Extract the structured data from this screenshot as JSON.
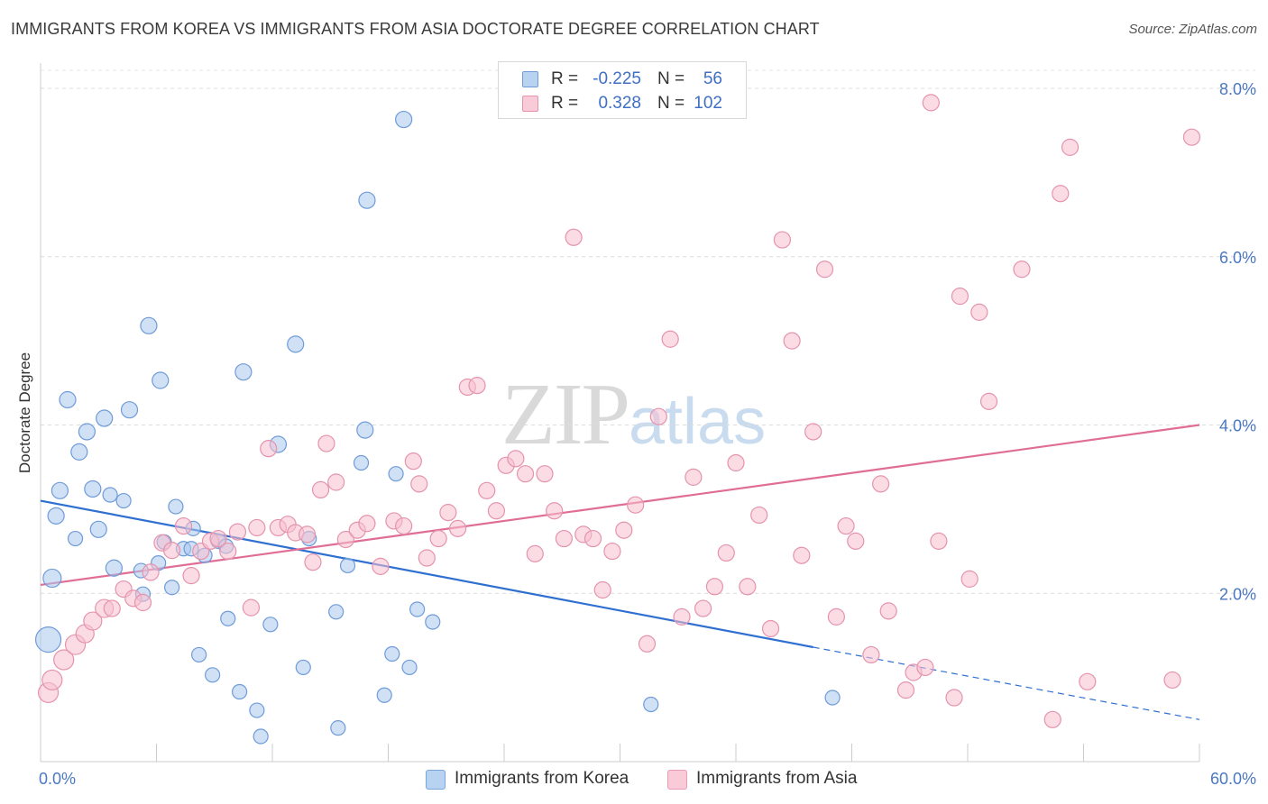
{
  "title": "IMMIGRANTS FROM KOREA VS IMMIGRANTS FROM ASIA DOCTORATE DEGREE CORRELATION CHART",
  "source": "Source: ZipAtlas.com",
  "watermark": {
    "part1": "ZIP",
    "part2": "atlas"
  },
  "legend": {
    "r_label": "R =",
    "n_label": "N =",
    "rows": [
      {
        "r": "-0.225",
        "n": "56",
        "color": "#a9c8ef",
        "border": "#5b8fd6"
      },
      {
        "r": "0.328",
        "n": "102",
        "color": "#f7bfd0",
        "border": "#e487a6"
      }
    ]
  },
  "chart_data": {
    "type": "scatter",
    "title": "IMMIGRANTS FROM KOREA VS IMMIGRANTS FROM ASIA DOCTORATE DEGREE CORRELATION CHART",
    "xlabel": "",
    "ylabel": "Doctorate Degree",
    "xlim": [
      0,
      60
    ],
    "ylim": [
      0,
      8.3
    ],
    "x_tick_labels": [
      "0.0%",
      "60.0%"
    ],
    "y_tick_labels": [
      "2.0%",
      "4.0%",
      "6.0%",
      "8.0%"
    ],
    "y_ticks": [
      2,
      4,
      6,
      8
    ],
    "grid": "horizontal dashed",
    "legend_position": "top-center",
    "series": [
      {
        "name": "Immigrants from Korea",
        "color": "#a9c8ef",
        "stroke": "#6f9bd8",
        "trend": {
          "x0": 0,
          "y0": 3.1,
          "x1": 40,
          "y1": 1.36,
          "color": "#2f6fd1",
          "dashed_to_x": 60,
          "dashed_to_y": 0.5
        },
        "points": [
          [
            0.4,
            1.45,
            14
          ],
          [
            0.6,
            2.18,
            10
          ],
          [
            0.8,
            2.92,
            9
          ],
          [
            1.0,
            3.22,
            9
          ],
          [
            1.4,
            4.3,
            9
          ],
          [
            1.8,
            2.65,
            8
          ],
          [
            2.0,
            3.68,
            9
          ],
          [
            2.4,
            3.92,
            9
          ],
          [
            2.7,
            3.24,
            9
          ],
          [
            3.0,
            2.76,
            9
          ],
          [
            3.3,
            4.08,
            9
          ],
          [
            3.6,
            3.17,
            8
          ],
          [
            3.8,
            2.3,
            9
          ],
          [
            4.3,
            3.1,
            8
          ],
          [
            4.6,
            4.18,
            9
          ],
          [
            5.2,
            2.27,
            8
          ],
          [
            5.3,
            1.99,
            8
          ],
          [
            5.6,
            5.18,
            9
          ],
          [
            6.1,
            2.36,
            8
          ],
          [
            6.2,
            4.53,
            9
          ],
          [
            6.4,
            2.61,
            8
          ],
          [
            6.8,
            2.07,
            8
          ],
          [
            7.0,
            3.03,
            8
          ],
          [
            7.4,
            2.53,
            8
          ],
          [
            7.8,
            2.53,
            8
          ],
          [
            7.9,
            2.77,
            8
          ],
          [
            8.2,
            1.27,
            8
          ],
          [
            8.5,
            2.45,
            8
          ],
          [
            8.9,
            1.03,
            8
          ],
          [
            9.2,
            2.62,
            8
          ],
          [
            9.6,
            2.56,
            8
          ],
          [
            9.7,
            1.7,
            8
          ],
          [
            10.3,
            0.83,
            8
          ],
          [
            10.5,
            4.63,
            9
          ],
          [
            11.2,
            0.61,
            8
          ],
          [
            11.4,
            0.3,
            8
          ],
          [
            11.9,
            1.63,
            8
          ],
          [
            12.3,
            3.77,
            9
          ],
          [
            13.2,
            4.96,
            9
          ],
          [
            13.6,
            1.12,
            8
          ],
          [
            13.9,
            2.65,
            8
          ],
          [
            15.3,
            1.78,
            8
          ],
          [
            15.4,
            0.4,
            8
          ],
          [
            15.9,
            2.33,
            8
          ],
          [
            16.6,
            3.55,
            8
          ],
          [
            16.8,
            3.94,
            9
          ],
          [
            16.9,
            6.67,
            9
          ],
          [
            17.8,
            0.79,
            8
          ],
          [
            18.2,
            1.28,
            8
          ],
          [
            18.4,
            3.42,
            8
          ],
          [
            18.8,
            7.63,
            9
          ],
          [
            19.1,
            1.12,
            8
          ],
          [
            19.5,
            1.81,
            8
          ],
          [
            20.3,
            1.66,
            8
          ],
          [
            31.6,
            0.68,
            8
          ],
          [
            41.0,
            0.76,
            8
          ]
        ]
      },
      {
        "name": "Immigrants from Asia",
        "color": "#f7bfd0",
        "stroke": "#e593ad",
        "trend": {
          "x0": 0,
          "y0": 2.1,
          "x1": 60,
          "y1": 4.0,
          "color": "#e06d96"
        },
        "points": [
          [
            0.4,
            0.82,
            11
          ],
          [
            0.6,
            0.97,
            11
          ],
          [
            1.2,
            1.21,
            11
          ],
          [
            1.8,
            1.39,
            11
          ],
          [
            2.3,
            1.52,
            10
          ],
          [
            2.7,
            1.67,
            10
          ],
          [
            3.3,
            1.82,
            10
          ],
          [
            3.7,
            1.82,
            9
          ],
          [
            4.3,
            2.05,
            9
          ],
          [
            4.8,
            1.94,
            9
          ],
          [
            5.3,
            1.89,
            9
          ],
          [
            5.7,
            2.25,
            9
          ],
          [
            6.3,
            2.6,
            9
          ],
          [
            6.8,
            2.51,
            9
          ],
          [
            7.4,
            2.8,
            9
          ],
          [
            7.8,
            2.21,
            9
          ],
          [
            8.3,
            2.5,
            9
          ],
          [
            8.8,
            2.62,
            9
          ],
          [
            9.2,
            2.65,
            9
          ],
          [
            9.7,
            2.5,
            9
          ],
          [
            10.2,
            2.73,
            9
          ],
          [
            10.9,
            1.83,
            9
          ],
          [
            11.2,
            2.78,
            9
          ],
          [
            11.8,
            3.72,
            9
          ],
          [
            12.3,
            2.78,
            9
          ],
          [
            12.8,
            2.82,
            9
          ],
          [
            13.2,
            2.72,
            9
          ],
          [
            13.8,
            2.7,
            9
          ],
          [
            14.1,
            2.37,
            9
          ],
          [
            14.5,
            3.23,
            9
          ],
          [
            14.8,
            3.78,
            9
          ],
          [
            15.3,
            3.32,
            9
          ],
          [
            15.8,
            2.64,
            9
          ],
          [
            16.4,
            2.75,
            9
          ],
          [
            16.9,
            2.83,
            9
          ],
          [
            17.6,
            2.32,
            9
          ],
          [
            18.3,
            2.86,
            9
          ],
          [
            18.8,
            2.8,
            9
          ],
          [
            19.3,
            3.57,
            9
          ],
          [
            19.6,
            3.3,
            9
          ],
          [
            20.0,
            2.42,
            9
          ],
          [
            20.6,
            2.65,
            9
          ],
          [
            21.1,
            2.96,
            9
          ],
          [
            21.6,
            2.77,
            9
          ],
          [
            22.1,
            4.45,
            9
          ],
          [
            22.6,
            4.47,
            9
          ],
          [
            23.1,
            3.22,
            9
          ],
          [
            23.6,
            2.98,
            9
          ],
          [
            24.1,
            3.52,
            9
          ],
          [
            24.6,
            3.6,
            9
          ],
          [
            25.1,
            3.42,
            9
          ],
          [
            25.6,
            2.47,
            9
          ],
          [
            26.1,
            3.42,
            9
          ],
          [
            26.6,
            2.98,
            9
          ],
          [
            27.1,
            2.65,
            9
          ],
          [
            27.6,
            6.23,
            9
          ],
          [
            28.1,
            2.7,
            9
          ],
          [
            28.6,
            2.65,
            9
          ],
          [
            29.1,
            2.04,
            9
          ],
          [
            29.6,
            2.5,
            9
          ],
          [
            30.2,
            2.75,
            9
          ],
          [
            30.8,
            3.05,
            9
          ],
          [
            31.4,
            1.4,
            9
          ],
          [
            32.0,
            4.1,
            9
          ],
          [
            32.6,
            5.02,
            9
          ],
          [
            33.2,
            1.72,
            9
          ],
          [
            33.8,
            3.38,
            9
          ],
          [
            34.3,
            1.82,
            9
          ],
          [
            34.9,
            2.08,
            9
          ],
          [
            35.5,
            2.48,
            9
          ],
          [
            36.0,
            3.55,
            9
          ],
          [
            36.6,
            2.08,
            9
          ],
          [
            37.2,
            2.93,
            9
          ],
          [
            37.8,
            1.58,
            9
          ],
          [
            38.4,
            6.2,
            9
          ],
          [
            38.9,
            5.0,
            9
          ],
          [
            39.4,
            2.45,
            9
          ],
          [
            40.0,
            3.92,
            9
          ],
          [
            40.6,
            5.85,
            9
          ],
          [
            41.2,
            1.72,
            9
          ],
          [
            41.7,
            2.8,
            9
          ],
          [
            42.2,
            2.62,
            9
          ],
          [
            43.0,
            1.27,
            9
          ],
          [
            43.5,
            3.3,
            9
          ],
          [
            43.9,
            1.79,
            9
          ],
          [
            44.8,
            0.85,
            9
          ],
          [
            45.2,
            1.06,
            9
          ],
          [
            45.8,
            1.12,
            9
          ],
          [
            46.1,
            7.83,
            9
          ],
          [
            46.5,
            2.62,
            9
          ],
          [
            47.3,
            0.76,
            9
          ],
          [
            47.6,
            5.53,
            9
          ],
          [
            48.1,
            2.17,
            9
          ],
          [
            48.6,
            5.34,
            9
          ],
          [
            49.1,
            4.28,
            9
          ],
          [
            50.8,
            5.85,
            9
          ],
          [
            52.4,
            0.5,
            9
          ],
          [
            52.8,
            6.75,
            9
          ],
          [
            53.3,
            7.3,
            9
          ],
          [
            54.2,
            0.95,
            9
          ],
          [
            58.6,
            0.97,
            9
          ],
          [
            59.6,
            7.42,
            9
          ]
        ]
      }
    ]
  },
  "bottom_legend": [
    {
      "label": "Immigrants from Korea",
      "color": "#b8d3f2",
      "border": "#7aa4dc"
    },
    {
      "label": "Immigrants from Asia",
      "color": "#f9cad8",
      "border": "#e99ab4"
    }
  ]
}
